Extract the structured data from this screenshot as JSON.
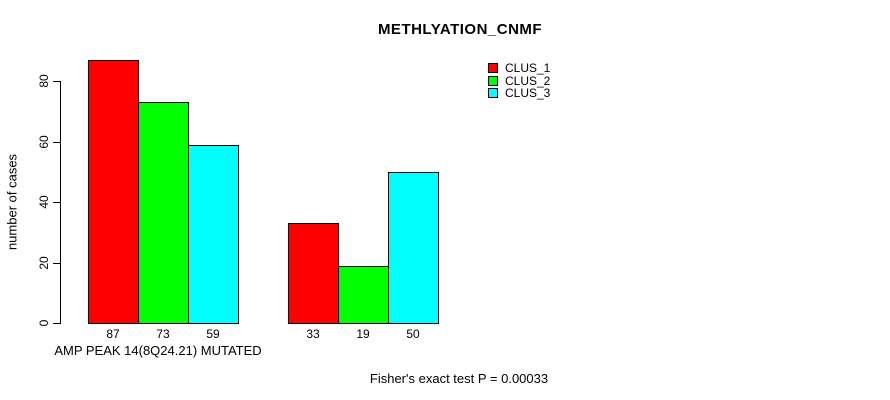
{
  "chart_data": {
    "type": "bar",
    "title": "METHLYATION_CNMF",
    "ylabel": "number of cases",
    "xlabel": "AMP PEAK 14(8Q24.21) MUTATED",
    "footnote": "Fisher's exact test P = 0.00033",
    "yticks": [
      0,
      20,
      40,
      60,
      80
    ],
    "ylim": [
      0,
      88
    ],
    "grid": false,
    "legend_position": "top-right-inside",
    "background_color": "#FFFFFF",
    "bar_border_color": "#000000",
    "categories": [
      "AMP PEAK 14(8Q24.21) MUTATED",
      ""
    ],
    "series": [
      {
        "name": "CLUS_1",
        "color": "#FF0000",
        "values": [
          87,
          33
        ]
      },
      {
        "name": "CLUS_2",
        "color": "#00FF00",
        "values": [
          73,
          19
        ]
      },
      {
        "name": "CLUS_3",
        "color": "#00FFFF",
        "values": [
          59,
          50
        ]
      }
    ],
    "bar_value_labels": [
      [
        87,
        73,
        59
      ],
      [
        33,
        19,
        50
      ]
    ]
  }
}
